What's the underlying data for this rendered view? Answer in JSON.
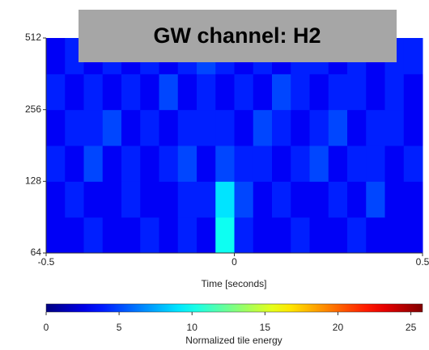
{
  "chart_data": {
    "type": "heatmap",
    "title": "GW channel: H2",
    "xlabel": "Time [seconds]",
    "colorbar_label": "Normalized tile energy",
    "colormap": "jet",
    "yscale": "log",
    "x_edges": [
      -0.5,
      -0.45,
      -0.4,
      -0.35,
      -0.3,
      -0.25,
      -0.2,
      -0.15,
      -0.1,
      -0.05,
      0,
      0.05,
      0.1,
      0.15,
      0.2,
      0.25,
      0.3,
      0.35,
      0.4,
      0.45,
      0.5
    ],
    "y_edges": [
      64,
      90.5,
      128,
      181,
      256,
      362,
      512
    ],
    "values": [
      [
        3,
        3,
        4,
        3,
        3,
        4,
        3,
        4,
        3,
        10,
        4,
        3,
        3,
        4,
        3,
        3,
        4,
        3,
        3,
        3
      ],
      [
        3,
        4,
        3,
        3,
        4,
        3,
        3,
        4,
        4,
        9,
        5,
        3,
        4,
        3,
        3,
        4,
        3,
        5,
        3,
        3
      ],
      [
        4,
        3,
        5,
        3,
        4,
        3,
        4,
        5,
        3,
        5,
        4,
        4,
        3,
        4,
        5,
        3,
        4,
        4,
        3,
        4
      ],
      [
        3,
        4,
        4,
        5,
        3,
        4,
        3,
        4,
        4,
        4,
        3,
        5,
        4,
        3,
        4,
        5,
        3,
        4,
        4,
        3
      ],
      [
        4,
        3,
        4,
        3,
        4,
        3,
        5,
        3,
        4,
        3,
        4,
        3,
        5,
        4,
        3,
        4,
        4,
        3,
        4,
        3
      ],
      [
        3,
        4,
        3,
        4,
        3,
        4,
        3,
        4,
        5,
        4,
        3,
        4,
        3,
        4,
        4,
        3,
        4,
        3,
        4,
        4
      ]
    ],
    "xlim": [
      -0.5,
      0.5
    ],
    "xticks": [
      -0.5,
      0,
      0.5
    ],
    "ylim": [
      64,
      512
    ],
    "yticks": [
      64,
      128,
      256,
      512
    ],
    "clim": [
      0,
      25.8
    ],
    "cticks": [
      0,
      5,
      10,
      15,
      20,
      25
    ]
  }
}
